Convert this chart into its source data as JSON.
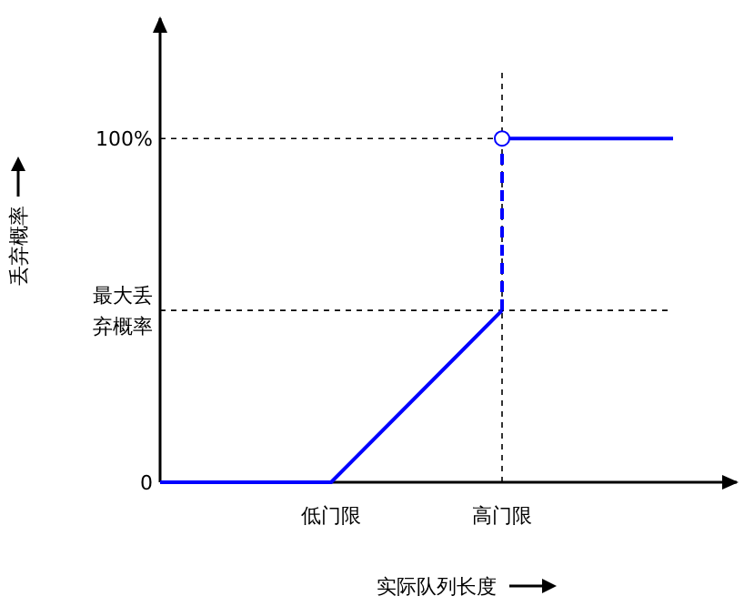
{
  "chart_data": {
    "type": "line",
    "xlabel": "实际队列长度",
    "ylabel": "丢弃概率",
    "grid": false,
    "categories": [
      null,
      "低门限",
      "高门限",
      null
    ],
    "ylim": [
      0,
      135
    ],
    "yticks": [
      0,
      {
        "value": 50,
        "label": "最大丢弃概率"
      },
      {
        "value": 100,
        "label": "100%"
      }
    ],
    "series": [
      {
        "type": "line",
        "color": "#0000ff",
        "line_style": "solid",
        "values": [
          0,
          0,
          50,
          null
        ]
      },
      {
        "type": "line",
        "color": "#0000ff",
        "line_style": "dashed",
        "x": [
          "高门限",
          "高门限"
        ],
        "values": [
          50,
          100
        ]
      },
      {
        "type": "line",
        "color": "#0000ff",
        "line_style": "solid",
        "values": [
          null,
          null,
          100,
          100
        ]
      },
      {
        "type": "scatter",
        "color": "#0000ff",
        "marker": "circle",
        "x": [
          "高门限"
        ],
        "values": [
          100
        ]
      }
    ],
    "ref_lines": [
      {
        "axis": "y",
        "value": 100,
        "color": "#000000",
        "line_style": "dashed"
      },
      {
        "axis": "y",
        "value": 50,
        "color": "#000000",
        "line_style": "dashed"
      },
      {
        "axis": "x",
        "value": "高门限",
        "color": "#000000",
        "line_style": "dashed"
      }
    ]
  }
}
